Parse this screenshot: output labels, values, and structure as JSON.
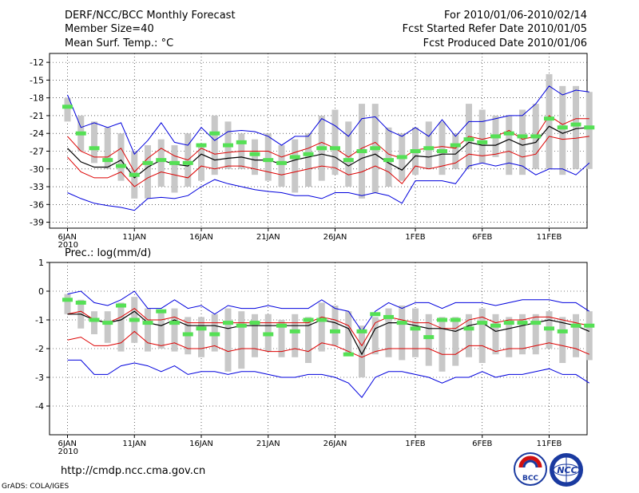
{
  "header": {
    "title": "DERF/NCC/BCC Monthly Forecast",
    "member_size": "Member Size=40",
    "variable": "Mean Surf. Temp.: °C",
    "period": "For 2010/01/06-2010/02/14",
    "fcst_started": "Fcst Started Refer Date 2010/01/05",
    "fcst_produced": "Fcst Produced Date 2010/01/06"
  },
  "footer": {
    "url": "http://cmdp.ncc.cma.gov.cn",
    "grads": "GrADS: COLA/IGES",
    "logo_bcc": "BCC",
    "logo_ncc": "NCC"
  },
  "colors": {
    "band": "#c8c8c8",
    "ensemble_max_min": "#0000dd",
    "spread": "#dd0000",
    "mean": "#000000",
    "member_mark": "#55e055",
    "grid": "#000000"
  },
  "chart_data": [
    {
      "type": "line",
      "id": "temperature",
      "title": "Mean Surf. Temp.: °C",
      "ylabel": "",
      "ylim": [
        -40,
        -10.5
      ],
      "yticks": [
        -39,
        -36,
        -33,
        -30,
        -27,
        -24,
        -21,
        -18,
        -15,
        -12
      ],
      "ytick_labels": [
        "-39",
        "-36",
        "-33",
        "-30",
        "-27",
        "-24",
        "-21",
        "-18",
        "-15",
        "-12"
      ],
      "x_days": 40,
      "xticks": [
        {
          "day": 0,
          "label": "6JAN",
          "sub": "2010"
        },
        {
          "day": 5,
          "label": "11JAN"
        },
        {
          "day": 10,
          "label": "16JAN"
        },
        {
          "day": 15,
          "label": "21JAN"
        },
        {
          "day": 20,
          "label": "26JAN"
        },
        {
          "day": 26,
          "label": "1FEB"
        },
        {
          "day": 31,
          "label": "6FEB"
        },
        {
          "day": 36,
          "label": "11FEB"
        }
      ],
      "bars_low": [
        -22,
        -27,
        -29,
        -30,
        -32,
        -35,
        -35,
        -33,
        -34,
        -33,
        -32,
        -31,
        -30,
        -30,
        -31,
        -32,
        -33,
        -34,
        -33,
        -32,
        -31,
        -33,
        -35,
        -34,
        -33,
        -32,
        -31,
        -30,
        -31,
        -30,
        -30,
        -29,
        -28,
        -31,
        -31,
        -30,
        -30,
        -31,
        -30,
        -30
      ],
      "bars_high": [
        -18,
        -21,
        -22,
        -23,
        -24,
        -27,
        -26,
        -25,
        -26,
        -24,
        -26,
        -21,
        -22,
        -24,
        -25,
        -24,
        -26,
        -25,
        -24,
        -21,
        -20,
        -22,
        -19,
        -19,
        -23,
        -24,
        -23,
        -22,
        -22,
        -24,
        -19,
        -20,
        -21,
        -21,
        -20,
        -19,
        -14,
        -16,
        -16,
        -17
      ],
      "series": [
        {
          "name": "ensemble max",
          "color": "#0000dd",
          "values": [
            -17.5,
            -23.0,
            -22.2,
            -23.0,
            -22.2,
            -27.5,
            -25.2,
            -22.2,
            -25.5,
            -26.0,
            -23.0,
            -25.2,
            -23.7,
            -23.5,
            -23.7,
            -24.5,
            -26.0,
            -24.5,
            -24.5,
            -21.5,
            -22.7,
            -24.5,
            -21.5,
            -21.2,
            -23.5,
            -24.5,
            -23.0,
            -24.5,
            -21.7,
            -24.5,
            -22.0,
            -22.0,
            -21.5,
            -21.0,
            -21.0,
            -19.0,
            -16.0,
            -17.5,
            -16.7,
            -17.0
          ]
        },
        {
          "name": "spread upper",
          "color": "#dd0000",
          "values": [
            -24.5,
            -27.0,
            -28.0,
            -28.0,
            -26.5,
            -30.5,
            -28.2,
            -26.5,
            -27.8,
            -28.5,
            -26.5,
            -27.5,
            -27.2,
            -27.0,
            -27.0,
            -27.0,
            -28.0,
            -27.2,
            -26.5,
            -25.5,
            -26.5,
            -28.0,
            -26.5,
            -25.5,
            -27.5,
            -28.2,
            -26.8,
            -26.5,
            -26.2,
            -26.5,
            -24.5,
            -25.0,
            -24.5,
            -23.5,
            -25.0,
            -24.5,
            -21.0,
            -22.5,
            -21.5,
            -21.5
          ]
        },
        {
          "name": "mean",
          "color": "#000000",
          "values": [
            -26.5,
            -28.8,
            -29.7,
            -29.7,
            -28.5,
            -31.5,
            -29.7,
            -28.5,
            -29.2,
            -29.5,
            -27.5,
            -28.5,
            -28.2,
            -28.0,
            -28.5,
            -28.5,
            -29.2,
            -28.5,
            -28.0,
            -27.5,
            -28.0,
            -29.5,
            -28.2,
            -27.5,
            -29.0,
            -30.2,
            -27.8,
            -28.0,
            -27.5,
            -27.5,
            -25.5,
            -26.0,
            -26.0,
            -25.0,
            -26.0,
            -25.5,
            -22.8,
            -24.0,
            -23.2,
            -23.0
          ]
        },
        {
          "name": "spread lower",
          "color": "#dd0000",
          "values": [
            -28.0,
            -30.5,
            -31.5,
            -31.5,
            -30.5,
            -33.0,
            -31.5,
            -30.5,
            -31.0,
            -31.5,
            -29.5,
            -30.0,
            -29.5,
            -29.5,
            -30.0,
            -30.5,
            -31.0,
            -30.5,
            -30.0,
            -29.5,
            -29.8,
            -31.0,
            -30.5,
            -29.5,
            -30.5,
            -32.5,
            -29.5,
            -30.0,
            -29.5,
            -29.0,
            -27.5,
            -27.8,
            -27.5,
            -27.0,
            -28.0,
            -27.5,
            -24.5,
            -25.0,
            -24.8,
            -24.5
          ]
        },
        {
          "name": "ensemble min",
          "color": "#0000dd",
          "values": [
            -34.0,
            -35.0,
            -35.8,
            -36.2,
            -36.5,
            -37.0,
            -35.0,
            -34.8,
            -35.0,
            -34.5,
            -33.0,
            -31.8,
            -32.5,
            -33.0,
            -33.5,
            -33.8,
            -34.0,
            -34.5,
            -34.5,
            -35.0,
            -34.0,
            -34.0,
            -34.5,
            -34.0,
            -34.5,
            -35.8,
            -32.0,
            -32.0,
            -32.0,
            -32.5,
            -29.5,
            -29.0,
            -29.5,
            -29.0,
            -29.5,
            -31.0,
            -30.0,
            -30.0,
            -31.0,
            -29.0
          ]
        }
      ],
      "members": [
        -19.5,
        -24.0,
        -26.5,
        -28.5,
        -29.5,
        -31.0,
        -29.0,
        -28.5,
        -29.0,
        -29.0,
        -26.0,
        -24.0,
        -26.0,
        -25.5,
        -27.5,
        -28.5,
        -29.0,
        -28.0,
        -27.5,
        -26.5,
        -26.5,
        -28.5,
        -27.0,
        -26.5,
        -28.5,
        -28.0,
        -27.0,
        -26.5,
        -27.0,
        -26.0,
        -25.0,
        -25.5,
        -24.5,
        -24.0,
        -24.5,
        -24.5,
        -21.5,
        -23.0,
        -22.5,
        -23.0
      ]
    },
    {
      "type": "line",
      "id": "precipitation",
      "title": "Prec.: log(mm/d)",
      "ylabel": "",
      "ylim": [
        -5,
        1
      ],
      "yticks": [
        -4,
        -3,
        -2,
        -1,
        0,
        1
      ],
      "ytick_labels": [
        "-4",
        "-3",
        "-2",
        "-1",
        "0",
        "1"
      ],
      "x_days": 40,
      "xticks": [
        {
          "day": 0,
          "label": "6JAN",
          "sub": "2010"
        },
        {
          "day": 5,
          "label": "11JAN"
        },
        {
          "day": 10,
          "label": "16JAN"
        },
        {
          "day": 15,
          "label": "21JAN"
        },
        {
          "day": 20,
          "label": "26JAN"
        },
        {
          "day": 26,
          "label": "1FEB"
        },
        {
          "day": 31,
          "label": "6FEB"
        },
        {
          "day": 36,
          "label": "11FEB"
        }
      ],
      "bars_low": [
        -0.8,
        -1.3,
        -1.5,
        -1.8,
        -2.1,
        -1.8,
        -2.1,
        -2.0,
        -2.1,
        -2.2,
        -2.3,
        -2.1,
        -2.8,
        -2.7,
        -2.3,
        -2.1,
        -2.3,
        -2.3,
        -2.5,
        -2.1,
        -1.9,
        -2.2,
        -3.0,
        -2.2,
        -2.3,
        -2.4,
        -2.3,
        -2.6,
        -2.8,
        -2.6,
        -2.3,
        -2.5,
        -2.2,
        -2.3,
        -2.2,
        -2.2,
        -2.0,
        -2.5,
        -2.3,
        -2.4
      ],
      "bars_high": [
        -0.1,
        -0.3,
        -0.7,
        -0.7,
        -0.4,
        -0.2,
        -0.6,
        -0.7,
        -0.6,
        -0.9,
        -0.9,
        -0.8,
        -0.6,
        -0.7,
        -0.8,
        -0.8,
        -1.0,
        -0.8,
        -0.9,
        -0.4,
        -0.5,
        -0.7,
        -1.2,
        -0.9,
        -0.6,
        -0.5,
        -0.6,
        -0.8,
        -0.9,
        -0.9,
        -0.8,
        -0.6,
        -0.8,
        -0.9,
        -0.8,
        -0.8,
        -0.7,
        -0.9,
        -0.8,
        -0.7
      ],
      "series": [
        {
          "name": "ensemble max",
          "color": "#0000dd",
          "values": [
            -0.1,
            0.0,
            -0.4,
            -0.5,
            -0.3,
            0.0,
            -0.6,
            -0.6,
            -0.3,
            -0.6,
            -0.5,
            -0.8,
            -0.5,
            -0.6,
            -0.6,
            -0.5,
            -0.6,
            -0.6,
            -0.6,
            -0.3,
            -0.6,
            -0.7,
            -1.4,
            -0.7,
            -0.4,
            -0.6,
            -0.4,
            -0.4,
            -0.6,
            -0.4,
            -0.4,
            -0.4,
            -0.5,
            -0.4,
            -0.3,
            -0.3,
            -0.3,
            -0.4,
            -0.4,
            -0.7
          ]
        },
        {
          "name": "spread upper",
          "color": "#dd0000",
          "values": [
            -0.8,
            -0.7,
            -1.0,
            -1.1,
            -0.9,
            -0.6,
            -1.0,
            -1.0,
            -0.9,
            -1.1,
            -1.1,
            -1.1,
            -1.1,
            -1.1,
            -1.1,
            -1.1,
            -1.1,
            -1.1,
            -1.1,
            -0.9,
            -1.0,
            -1.2,
            -1.9,
            -1.1,
            -0.9,
            -1.0,
            -1.1,
            -1.1,
            -1.3,
            -1.3,
            -1.0,
            -0.9,
            -1.1,
            -1.0,
            -1.0,
            -0.9,
            -0.9,
            -1.0,
            -1.1,
            -1.2
          ]
        },
        {
          "name": "mean",
          "color": "#000000",
          "values": [
            -0.8,
            -0.8,
            -1.0,
            -1.1,
            -1.0,
            -0.7,
            -1.1,
            -1.2,
            -1.0,
            -1.2,
            -1.2,
            -1.2,
            -1.3,
            -1.2,
            -1.2,
            -1.2,
            -1.2,
            -1.2,
            -1.2,
            -1.0,
            -1.1,
            -1.3,
            -2.2,
            -1.3,
            -1.1,
            -1.1,
            -1.2,
            -1.3,
            -1.3,
            -1.4,
            -1.2,
            -1.1,
            -1.4,
            -1.3,
            -1.2,
            -1.1,
            -1.0,
            -1.1,
            -1.2,
            -1.4
          ]
        },
        {
          "name": "spread lower",
          "color": "#dd0000",
          "values": [
            -1.7,
            -1.6,
            -1.9,
            -1.9,
            -1.8,
            -1.4,
            -1.8,
            -1.9,
            -1.8,
            -2.0,
            -2.0,
            -1.9,
            -2.1,
            -2.0,
            -2.0,
            -2.1,
            -2.1,
            -2.0,
            -2.1,
            -1.8,
            -1.9,
            -2.1,
            -2.3,
            -2.1,
            -2.0,
            -2.0,
            -2.0,
            -2.0,
            -2.2,
            -2.2,
            -1.9,
            -1.9,
            -2.1,
            -2.0,
            -2.0,
            -1.9,
            -1.8,
            -1.9,
            -2.0,
            -2.2
          ]
        },
        {
          "name": "ensemble min",
          "color": "#0000dd",
          "values": [
            -2.4,
            -2.4,
            -2.9,
            -2.9,
            -2.6,
            -2.5,
            -2.6,
            -2.8,
            -2.6,
            -2.9,
            -2.8,
            -2.8,
            -2.9,
            -2.8,
            -2.8,
            -2.9,
            -3.0,
            -3.0,
            -2.9,
            -2.9,
            -3.0,
            -3.2,
            -3.7,
            -3.0,
            -2.8,
            -2.8,
            -2.9,
            -3.0,
            -3.2,
            -3.0,
            -3.0,
            -2.8,
            -3.0,
            -2.9,
            -2.9,
            -2.8,
            -2.7,
            -2.9,
            -2.9,
            -3.2
          ]
        }
      ],
      "members": [
        -0.3,
        -0.4,
        -1.0,
        -1.1,
        -0.5,
        -1.0,
        -1.1,
        -0.7,
        -1.1,
        -1.5,
        -1.3,
        -1.5,
        -1.1,
        -1.2,
        -1.1,
        -1.5,
        -1.2,
        -1.4,
        -1.0,
        -1.0,
        -1.4,
        -2.2,
        -1.4,
        -0.8,
        -0.9,
        -1.1,
        -1.3,
        -1.6,
        -1.0,
        -1.0,
        -1.3,
        -1.1,
        -1.2,
        -1.1,
        -1.1,
        -1.1,
        -1.3,
        -1.4,
        -1.2,
        -1.2
      ]
    }
  ]
}
